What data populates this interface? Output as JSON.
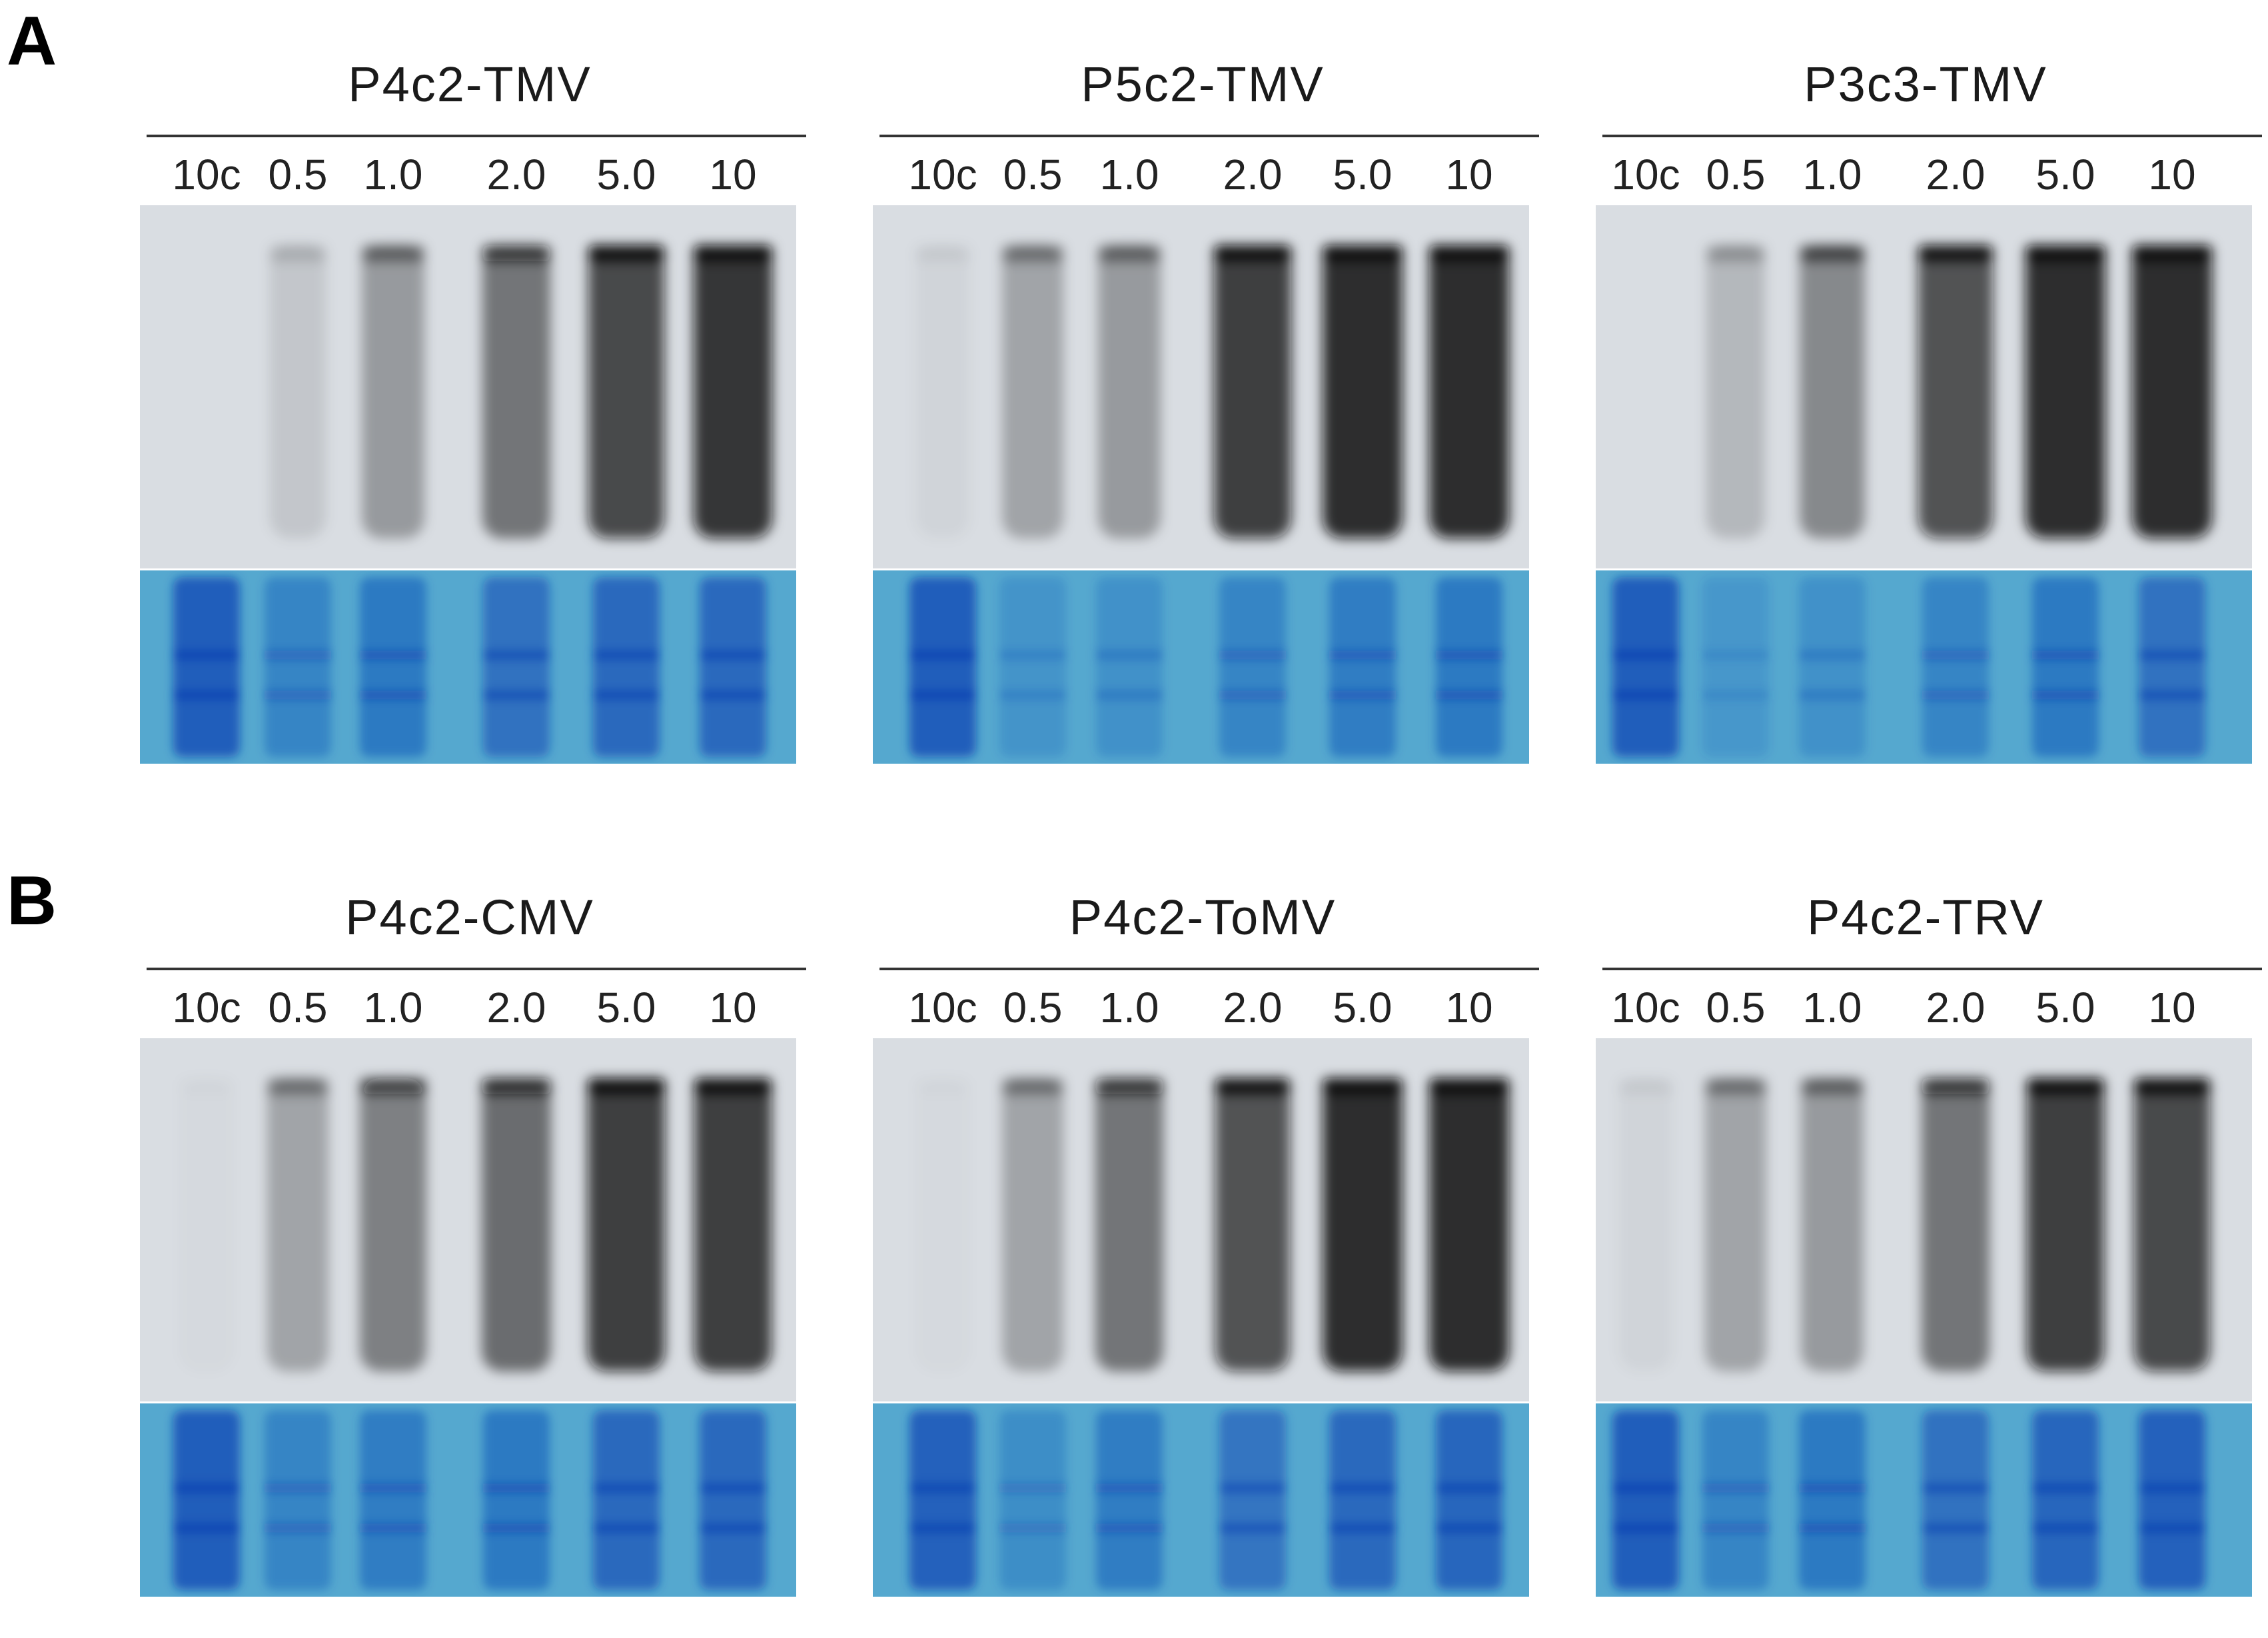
{
  "figure": {
    "sections": [
      {
        "letter": "A",
        "panels": [
          {
            "title": "P4c2-TMV",
            "lanes": [
              "10c",
              "0.5",
              "1.0",
              "2.0",
              "5.0",
              "10"
            ],
            "lane_signal": [
              0.0,
              0.12,
              0.35,
              0.55,
              0.85,
              0.95
            ],
            "stain_signal": [
              0.95,
              0.45,
              0.6,
              0.7,
              0.8,
              0.8
            ]
          },
          {
            "title": "P5c2-TMV",
            "lanes": [
              "10c",
              "0.5",
              "1.0",
              "2.0",
              "5.0",
              "10"
            ],
            "lane_signal": [
              0.05,
              0.3,
              0.35,
              0.9,
              1.0,
              1.0
            ],
            "stain_signal": [
              0.95,
              0.25,
              0.3,
              0.45,
              0.55,
              0.6
            ]
          },
          {
            "title": "P3c3-TMV",
            "lanes": [
              "10c",
              "0.5",
              "1.0",
              "2.0",
              "5.0",
              "10"
            ],
            "lane_signal": [
              0.0,
              0.2,
              0.45,
              0.8,
              1.0,
              1.0
            ],
            "stain_signal": [
              0.95,
              0.2,
              0.3,
              0.45,
              0.6,
              0.7
            ]
          }
        ]
      },
      {
        "letter": "B",
        "panels": [
          {
            "title": "P4c2-CMV",
            "lanes": [
              "10c",
              "0.5",
              "1.0",
              "2.0",
              "5.0",
              "10"
            ],
            "lane_signal": [
              0.02,
              0.3,
              0.5,
              0.6,
              0.9,
              0.9
            ],
            "stain_signal": [
              0.95,
              0.45,
              0.55,
              0.6,
              0.8,
              0.8
            ]
          },
          {
            "title": "P4c2-ToMV",
            "lanes": [
              "10c",
              "0.5",
              "1.0",
              "2.0",
              "5.0",
              "10"
            ],
            "lane_signal": [
              0.02,
              0.3,
              0.55,
              0.8,
              1.0,
              1.0
            ],
            "stain_signal": [
              0.9,
              0.35,
              0.55,
              0.65,
              0.8,
              0.85
            ]
          },
          {
            "title": "P4c2-TRV",
            "lanes": [
              "10c",
              "0.5",
              "1.0",
              "2.0",
              "5.0",
              "10"
            ],
            "lane_signal": [
              0.05,
              0.3,
              0.35,
              0.55,
              0.9,
              0.85
            ],
            "stain_signal": [
              0.95,
              0.45,
              0.6,
              0.7,
              0.85,
              0.9
            ]
          }
        ]
      }
    ],
    "colors": {
      "blot_background": "#d9dde2",
      "blot_band": "#0a0a0a",
      "stain_background": "#55a8cf",
      "stain_band": "#0d47b4",
      "rule": "#333333"
    }
  }
}
